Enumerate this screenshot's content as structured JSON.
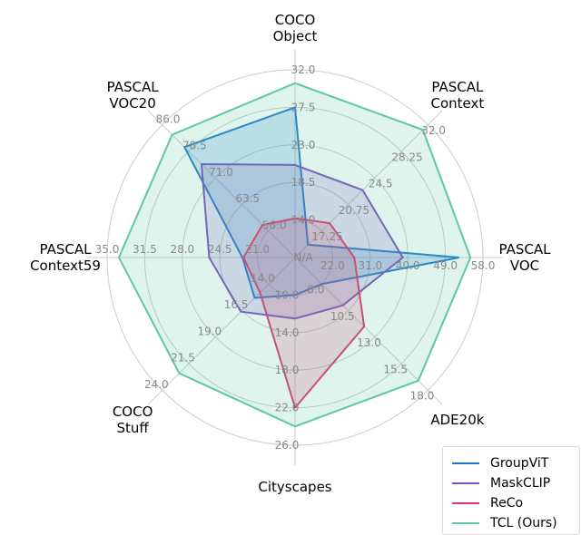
{
  "chart_data": {
    "type": "radar",
    "axes": [
      {
        "label": [
          "COCO",
          "Object"
        ],
        "ticks": [
          "N/A",
          "14.0",
          "18.5",
          "23.0",
          "27.5",
          "32.0"
        ],
        "min": 9.5,
        "max": 32.0
      },
      {
        "label": [
          "PASCAL",
          "Context"
        ],
        "ticks": [
          "17.25",
          "20.75",
          "24.5",
          "28.25",
          "32.0"
        ],
        "min": 13.5,
        "max": 32.0
      },
      {
        "label": [
          "PASCAL",
          "VOC"
        ],
        "ticks": [
          "22.0",
          "31.0",
          "40.0",
          "49.0",
          "58.0"
        ],
        "min": 13.0,
        "max": 58.0
      },
      {
        "label": [
          "ADE20k"
        ],
        "ticks": [
          "8.0",
          "10.5",
          "13.0",
          "15.5",
          "18.0"
        ],
        "min": 5.5,
        "max": 18.0
      },
      {
        "label": [
          "Cityscapes"
        ],
        "ticks": [
          "10.0",
          "14.0",
          "18.0",
          "22.0",
          "26.0"
        ],
        "min": 6.0,
        "max": 26.0
      },
      {
        "label": [
          "COCO",
          "Stuff"
        ],
        "ticks": [
          "14.0",
          "16.5",
          "19.0",
          "21.5",
          "24.0"
        ],
        "min": 11.5,
        "max": 24.0
      },
      {
        "label": [
          "PASCAL",
          "Context59"
        ],
        "ticks": [
          "21.0",
          "24.5",
          "28.0",
          "31.5",
          "35.0"
        ],
        "min": 17.5,
        "max": 35.0
      },
      {
        "label": [
          "PASCAL",
          "VOC20"
        ],
        "ticks": [
          "56.0",
          "63.5",
          "71.0",
          "78.5",
          "86.0"
        ],
        "min": 48.5,
        "max": 86.0
      }
    ],
    "series": [
      {
        "name": "GroupViT",
        "color": "#1f77d0",
        "values": [
          27.5,
          15.3,
          52.3,
          8.0,
          10.0,
          15.3,
          22.4,
          79.7
        ]
      },
      {
        "name": "MaskCLIP",
        "color": "#7b4fbf",
        "values": [
          20.6,
          22.9,
          38.8,
          10.0,
          12.5,
          16.6,
          25.5,
          74.9
        ]
      },
      {
        "name": "ReCo",
        "color": "#e2336a",
        "values": [
          14.2,
          18.3,
          27.2,
          12.0,
          22.0,
          14.8,
          22.3,
          57.7
        ]
      },
      {
        "name": "TCL (Ours)",
        "color": "#5cc8a4",
        "values": [
          30.4,
          31.3,
          55.0,
          17.1,
          24.0,
          22.4,
          33.9,
          83.2
        ]
      }
    ],
    "legend_position": "bottom-right",
    "grid": true
  }
}
